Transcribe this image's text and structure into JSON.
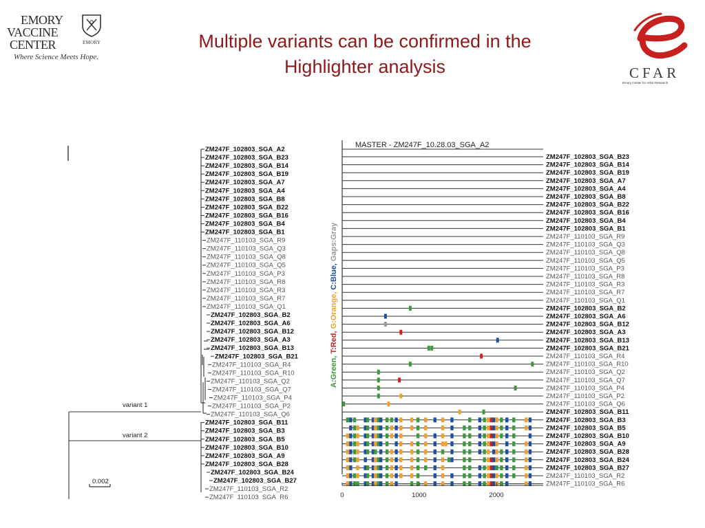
{
  "header": {
    "title_line1": "Multiple variants can be confirmed in the",
    "title_line2": "Highlighter analysis"
  },
  "logo_left": {
    "line1": "EMORY",
    "line2": "VACCINE",
    "line3": "CENTER",
    "small": "EMORY",
    "tagline": "Where Science Meets Hope."
  },
  "logo_right": {
    "word": "CFAR",
    "tagline": "Emory Center for AIDS Research",
    "accent_color": "#c8201f"
  },
  "tree": {
    "labels": [
      "ZM247F_102803_SGA_A2",
      "ZM247F_102803_SGA_B23",
      "ZM247F_102803_SGA_B14",
      "ZM247F_102803_SGA_B19",
      "ZM247F_102803_SGA_A7",
      "ZM247F_102803_SGA_A4",
      "ZM247F_102803_SGA_B8",
      "ZM247F_102803_SGA_B22",
      "ZM247F_102803_SGA_B16",
      "ZM247F_102803_SGA_B4",
      "ZM247F_102803_SGA_B1",
      "ZM247F_110103_SGA_R9",
      "ZM247F_110103_SGA_Q3",
      "ZM247F_110103_SGA_Q8",
      "ZM247F_110103_SGA_Q5",
      "ZM247F_110103_SGA_P3",
      "ZM247F_110103_SGA_R8",
      "ZM247F_110103_SGA_R3",
      "ZM247F_110103_SGA_R7",
      "ZM247F_110103_SGA_Q1",
      "ZM247F_102803_SGA_B2",
      "ZM247F_102803_SGA_A6",
      "ZM247F_102803_SGA_B12",
      "ZM247F_102803_SGA_A3",
      "ZM247F_102803_SGA_B13",
      "ZM247F_102803_SGA_B21",
      "ZM247F_110103_SGA_R4",
      "ZM247F_110103_SGA_R10",
      "ZM247F_110103_SGA_Q2",
      "ZM247F_110103_SGA_Q7",
      "ZM247F_110103_SGA_P4",
      "ZM247F_110103_SGA_P2",
      "ZM247F_110103_SGA_Q6",
      "ZM247F_102803_SGA_B11",
      "ZM247F_102803_SGA_B3",
      "ZM247F_102803_SGA_B5",
      "ZM247F_102803_SGA_B10",
      "ZM247F_102803_SGA_A9",
      "ZM247F_102803_SGA_B28",
      "ZM247F_102803_SGA_B24",
      "ZM247F_102803_SGA_B27",
      "ZM247F_110103_SGA_R2",
      "ZM247F_110103_SGA_R6"
    ],
    "variant1_label": "variant 1",
    "variant2_label": "variant 2",
    "scale_label": "0.002"
  },
  "highlighter": {
    "master_label": "MASTER - ZM247F_10.28.03_SGA_A2",
    "legend": {
      "a": "A:Green,",
      "t": "T:Red,",
      "g": "G:Orange,",
      "c": "C:Blue,",
      "gaps": "Gaps:Gray"
    },
    "colors": {
      "A": "#3c9a3c",
      "T": "#cc2222",
      "G": "#f0a030",
      "C": "#1f4fa0",
      "gap": "#999999"
    },
    "rows": [
      "ZM247F_102803_SGA_B23",
      "ZM247F_102803_SGA_B14",
      "ZM247F_102803_SGA_B19",
      "ZM247F_102803_SGA_A7",
      "ZM247F_102803_SGA_A4",
      "ZM247F_102803_SGA_B8",
      "ZM247F_102803_SGA_B22",
      "ZM247F_102803_SGA_B16",
      "ZM247F_102803_SGA_B4",
      "ZM247F_102803_SGA_B1",
      "ZM247F_110103_SGA_R9",
      "ZM247F_110103_SGA_Q3",
      "ZM247F_110103_SGA_Q8",
      "ZM247F_110103_SGA_Q5",
      "ZM247F_110103_SGA_P3",
      "ZM247F_110103_SGA_R8",
      "ZM247F_110103_SGA_R3",
      "ZM247F_110103_SGA_R7",
      "ZM247F_110103_SGA_Q1",
      "ZM247F_102803_SGA_B2",
      "ZM247F_102803_SGA_A6",
      "ZM247F_102803_SGA_B12",
      "ZM247F_102803_SGA_A3",
      "ZM247F_102803_SGA_B13",
      "ZM247F_102803_SGA_B21",
      "ZM247F_110103_SGA_R4",
      "ZM247F_110103_SGA_R10",
      "ZM247F_110103_SGA_Q2",
      "ZM247F_110103_SGA_Q7",
      "ZM247F_110103_SGA_P4",
      "ZM247F_110103_SGA_P2",
      "ZM247F_110103_SGA_Q6",
      "ZM247F_102803_SGA_B11",
      "ZM247F_102803_SGA_B3",
      "ZM247F_102803_SGA_B5",
      "ZM247F_102803_SGA_B10",
      "ZM247F_102803_SGA_A9",
      "ZM247F_102803_SGA_B28",
      "ZM247F_102803_SGA_B24",
      "ZM247F_102803_SGA_B27",
      "ZM247F_110103_SGA_R2",
      "ZM247F_110103_SGA_R6"
    ],
    "x_ticks": [
      "0",
      "1000",
      "2000"
    ]
  }
}
